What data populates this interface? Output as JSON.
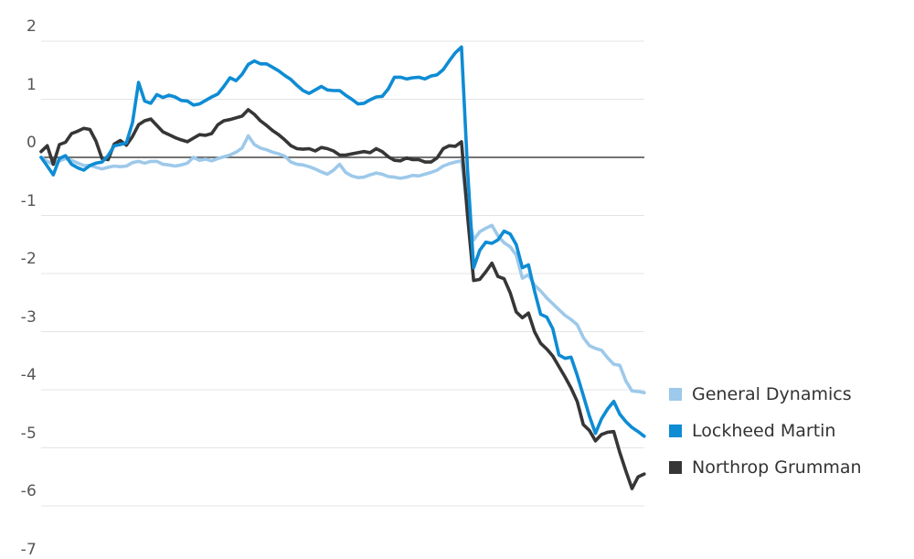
{
  "chart_data": {
    "type": "line",
    "title": "",
    "y_axis": {
      "tick_labels": [
        "2",
        "1",
        "0",
        "-1",
        "-2",
        "-3",
        "-4",
        "-5",
        "-6",
        "-7"
      ],
      "tick_values": [
        2,
        1,
        0,
        -1,
        -2,
        -3,
        -4,
        -5,
        -6,
        -7
      ],
      "ylim": [
        -7,
        2
      ],
      "zero_line": true,
      "grid": true
    },
    "x_axis": {
      "labels_visible": false,
      "n_points": 100
    },
    "legend": {
      "position": "right",
      "entries": [
        "General Dynamics",
        "Lockheed Martin",
        "Northrop Grumman"
      ]
    },
    "colors": {
      "grid": "#e4e4e4",
      "zero_line": "#474747",
      "tick_text": "#555555",
      "legend_text": "#333333"
    },
    "series": [
      {
        "name": "General Dynamics",
        "color": "#9dc9ea",
        "values": [
          0.0,
          -0.07,
          -0.12,
          -0.06,
          -0.02,
          -0.05,
          -0.1,
          -0.14,
          -0.14,
          -0.17,
          -0.2,
          -0.17,
          -0.15,
          -0.16,
          -0.15,
          -0.09,
          -0.07,
          -0.1,
          -0.07,
          -0.07,
          -0.12,
          -0.13,
          -0.15,
          -0.13,
          -0.1,
          0.0,
          -0.05,
          -0.03,
          -0.06,
          -0.02,
          0.01,
          0.04,
          0.09,
          0.16,
          0.37,
          0.22,
          0.16,
          0.13,
          0.09,
          0.06,
          0.02,
          -0.08,
          -0.12,
          -0.13,
          -0.16,
          -0.2,
          -0.25,
          -0.29,
          -0.22,
          -0.12,
          -0.26,
          -0.32,
          -0.35,
          -0.34,
          -0.3,
          -0.27,
          -0.29,
          -0.33,
          -0.34,
          -0.36,
          -0.34,
          -0.31,
          -0.32,
          -0.29,
          -0.26,
          -0.22,
          -0.15,
          -0.11,
          -0.08,
          -0.06,
          -0.9,
          -1.42,
          -1.28,
          -1.22,
          -1.17,
          -1.35,
          -1.47,
          -1.54,
          -1.68,
          -2.08,
          -2.02,
          -2.2,
          -2.3,
          -2.42,
          -2.52,
          -2.62,
          -2.72,
          -2.79,
          -2.88,
          -3.1,
          -3.24,
          -3.29,
          -3.32,
          -3.45,
          -3.56,
          -3.58,
          -3.85,
          -4.02,
          -4.03,
          -4.05
        ]
      },
      {
        "name": "Lockheed Martin",
        "color": "#0e8cd4",
        "values": [
          0.0,
          -0.15,
          -0.3,
          -0.02,
          0.03,
          -0.12,
          -0.18,
          -0.22,
          -0.14,
          -0.1,
          -0.08,
          0.03,
          0.2,
          0.22,
          0.25,
          0.6,
          1.29,
          0.97,
          0.93,
          1.08,
          1.03,
          1.07,
          1.04,
          0.98,
          0.97,
          0.9,
          0.92,
          0.98,
          1.04,
          1.09,
          1.22,
          1.37,
          1.32,
          1.43,
          1.6,
          1.66,
          1.61,
          1.61,
          1.55,
          1.49,
          1.41,
          1.34,
          1.24,
          1.15,
          1.1,
          1.16,
          1.22,
          1.16,
          1.15,
          1.15,
          1.07,
          1.0,
          0.92,
          0.93,
          0.99,
          1.04,
          1.05,
          1.18,
          1.38,
          1.38,
          1.35,
          1.37,
          1.38,
          1.35,
          1.4,
          1.42,
          1.51,
          1.66,
          1.8,
          1.9,
          -0.2,
          -1.9,
          -1.6,
          -1.46,
          -1.48,
          -1.42,
          -1.27,
          -1.32,
          -1.5,
          -1.9,
          -1.85,
          -2.3,
          -2.7,
          -2.75,
          -2.95,
          -3.4,
          -3.46,
          -3.44,
          -3.75,
          -4.1,
          -4.45,
          -4.75,
          -4.5,
          -4.33,
          -4.2,
          -4.42,
          -4.55,
          -4.65,
          -4.72,
          -4.8
        ]
      },
      {
        "name": "Northrop Grumman",
        "color": "#363636",
        "values": [
          0.1,
          0.2,
          -0.12,
          0.22,
          0.26,
          0.41,
          0.45,
          0.5,
          0.48,
          0.28,
          -0.02,
          -0.04,
          0.23,
          0.29,
          0.21,
          0.36,
          0.56,
          0.63,
          0.66,
          0.55,
          0.44,
          0.39,
          0.34,
          0.3,
          0.27,
          0.33,
          0.39,
          0.38,
          0.41,
          0.56,
          0.63,
          0.65,
          0.68,
          0.71,
          0.82,
          0.74,
          0.63,
          0.55,
          0.46,
          0.39,
          0.3,
          0.2,
          0.15,
          0.14,
          0.15,
          0.11,
          0.17,
          0.15,
          0.11,
          0.04,
          0.04,
          0.06,
          0.08,
          0.1,
          0.08,
          0.15,
          0.1,
          0.01,
          -0.05,
          -0.06,
          -0.01,
          -0.04,
          -0.04,
          -0.08,
          -0.08,
          -0.01,
          0.15,
          0.2,
          0.19,
          0.27,
          -1.0,
          -2.12,
          -2.1,
          -1.97,
          -1.82,
          -2.05,
          -2.09,
          -2.33,
          -2.66,
          -2.76,
          -2.68,
          -3.0,
          -3.2,
          -3.3,
          -3.42,
          -3.6,
          -3.78,
          -3.97,
          -4.2,
          -4.6,
          -4.7,
          -4.88,
          -4.77,
          -4.73,
          -4.72,
          -5.08,
          -5.4,
          -5.7,
          -5.5,
          -5.45
        ]
      }
    ]
  }
}
